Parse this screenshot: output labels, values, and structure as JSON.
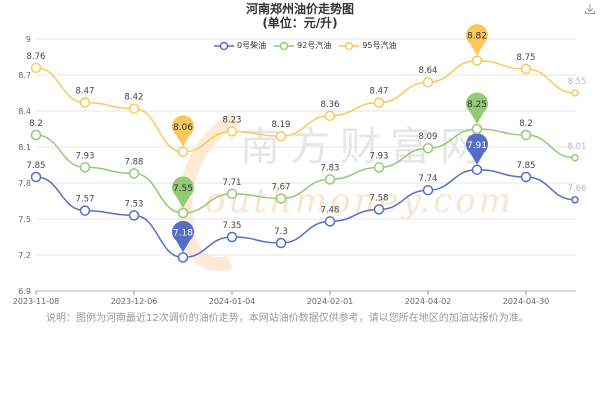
{
  "header": {
    "title_line1": "河南郑州油价走势图",
    "title_line2": "(单位：元/升)",
    "download_icon": "download-icon"
  },
  "legend": [
    {
      "label": "0号柴油",
      "color": "#5470c6"
    },
    {
      "label": "92号汽油",
      "color": "#91cc75"
    },
    {
      "label": "95号汽油",
      "color": "#fac858"
    }
  ],
  "note": "说明：图例为河南最近12次调价的油价走势，本网站油价数据仅供参考，请以您所在地区的加油站报价为准。",
  "watermark": {
    "cn": "南方财富网",
    "en": "Southmoney.com"
  },
  "chart_data": {
    "type": "line",
    "title": "河南郑州油价走势图 (单位：元/升)",
    "xlabel": "",
    "ylabel": "",
    "ylim": [
      6.9,
      9
    ],
    "yticks": [
      6.9,
      7.2,
      7.5,
      7.8,
      8.1,
      8.4,
      8.7,
      9
    ],
    "xtick_labels": [
      "2023-11-08",
      "2023-12-06",
      "2024-01-04",
      "2024-02-01",
      "2024-04-02",
      "2024-04-30"
    ],
    "grid": true,
    "legend_position": "top",
    "smooth": true,
    "point_count": 12,
    "series": [
      {
        "name": "0号柴油",
        "color": "#5470c6",
        "values": [
          7.85,
          7.57,
          7.53,
          7.18,
          7.35,
          7.3,
          7.48,
          7.58,
          7.74,
          7.91,
          7.85,
          7.66
        ],
        "min_marker": {
          "index": 3,
          "value": 7.18
        },
        "max_marker": {
          "index": 9,
          "value": 7.91
        }
      },
      {
        "name": "92号汽油",
        "color": "#91cc75",
        "values": [
          8.2,
          7.93,
          7.88,
          7.55,
          7.71,
          7.67,
          7.83,
          7.93,
          8.09,
          8.25,
          8.2,
          8.01
        ],
        "min_marker": {
          "index": 3,
          "value": 7.55
        },
        "max_marker": {
          "index": 9,
          "value": 8.25
        }
      },
      {
        "name": "95号汽油",
        "color": "#fac858",
        "values": [
          8.76,
          8.47,
          8.42,
          8.06,
          8.23,
          8.19,
          8.36,
          8.47,
          8.64,
          8.82,
          8.75,
          8.55
        ],
        "min_marker": {
          "index": 3,
          "value": 8.06
        },
        "max_marker": {
          "index": 9,
          "value": 8.82
        }
      }
    ]
  }
}
